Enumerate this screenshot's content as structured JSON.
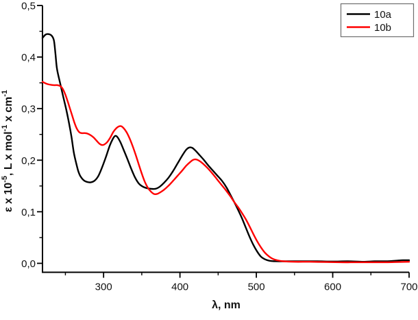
{
  "figure": {
    "background": "#ffffff"
  },
  "chart_data": {
    "type": "line",
    "title": "",
    "xlabel": "λ, nm",
    "ylabel_plain": "ε x 10-5, L x mol-1 x cm-1",
    "ylabel_parts": [
      {
        "text": "ε x 10"
      },
      {
        "sup": "-5"
      },
      {
        "text": ", L x mol"
      },
      {
        "sup": "-1"
      },
      {
        "text": " x cm"
      },
      {
        "sup": "-1"
      }
    ],
    "axes": {
      "xlim": [
        220,
        700
      ],
      "ylim": [
        0.0,
        0.5
      ],
      "grid": false,
      "x_major_ticks": [
        {
          "value": 300,
          "label": "300"
        },
        {
          "value": 400,
          "label": "400"
        },
        {
          "value": 500,
          "label": "500"
        },
        {
          "value": 600,
          "label": "600"
        },
        {
          "value": 700,
          "label": "700"
        }
      ],
      "x_minor_ticks": [
        250,
        350,
        450,
        550,
        650
      ],
      "y_major_ticks": [
        {
          "value": 0.0,
          "label": "0,0"
        },
        {
          "value": 0.1,
          "label": "0,1"
        },
        {
          "value": 0.2,
          "label": "0,2"
        },
        {
          "value": 0.3,
          "label": "0,3"
        },
        {
          "value": 0.4,
          "label": "0,4"
        },
        {
          "value": 0.5,
          "label": "0,5"
        }
      ],
      "y_minor_ticks": [
        0.05,
        0.15,
        0.25,
        0.35,
        0.45
      ]
    },
    "legend": {
      "position": "top-right",
      "entries": [
        {
          "label": "10a",
          "color": "#000000"
        },
        {
          "label": "10b",
          "color": "#ff0000"
        }
      ]
    },
    "series": [
      {
        "name": "10a",
        "color": "#000000",
        "points": [
          [
            220,
            0.437
          ],
          [
            224,
            0.4435
          ],
          [
            228,
            0.4445
          ],
          [
            232,
            0.4415
          ],
          [
            235,
            0.432
          ],
          [
            237,
            0.406
          ],
          [
            239,
            0.377
          ],
          [
            243,
            0.35
          ],
          [
            247,
            0.324
          ],
          [
            251,
            0.299
          ],
          [
            255,
            0.27
          ],
          [
            258,
            0.245
          ],
          [
            261,
            0.215
          ],
          [
            264,
            0.195
          ],
          [
            267,
            0.178
          ],
          [
            270,
            0.168
          ],
          [
            274,
            0.161
          ],
          [
            278,
            0.158
          ],
          [
            283,
            0.157
          ],
          [
            288,
            0.16
          ],
          [
            293,
            0.169
          ],
          [
            298,
            0.186
          ],
          [
            303,
            0.206
          ],
          [
            308,
            0.228
          ],
          [
            312,
            0.241
          ],
          [
            315,
            0.247
          ],
          [
            318,
            0.245
          ],
          [
            322,
            0.235
          ],
          [
            326,
            0.221
          ],
          [
            331,
            0.203
          ],
          [
            336,
            0.184
          ],
          [
            341,
            0.167
          ],
          [
            346,
            0.155
          ],
          [
            351,
            0.149
          ],
          [
            356,
            0.146
          ],
          [
            362,
            0.1445
          ],
          [
            368,
            0.1445
          ],
          [
            373,
            0.148
          ],
          [
            379,
            0.156
          ],
          [
            385,
            0.166
          ],
          [
            391,
            0.179
          ],
          [
            397,
            0.194
          ],
          [
            403,
            0.209
          ],
          [
            408,
            0.22
          ],
          [
            412,
            0.2245
          ],
          [
            416,
            0.224
          ],
          [
            420,
            0.219
          ],
          [
            425,
            0.211
          ],
          [
            431,
            0.201
          ],
          [
            437,
            0.19
          ],
          [
            443,
            0.18
          ],
          [
            449,
            0.17
          ],
          [
            455,
            0.16
          ],
          [
            461,
            0.147
          ],
          [
            466,
            0.133
          ],
          [
            471,
            0.119
          ],
          [
            476,
            0.104
          ],
          [
            481,
            0.088
          ],
          [
            486,
            0.07
          ],
          [
            491,
            0.052
          ],
          [
            496,
            0.036
          ],
          [
            501,
            0.023
          ],
          [
            506,
            0.013
          ],
          [
            511,
            0.008
          ],
          [
            517,
            0.005
          ],
          [
            525,
            0.004
          ],
          [
            540,
            0.004
          ],
          [
            560,
            0.004
          ],
          [
            580,
            0.004
          ],
          [
            600,
            0.0035
          ],
          [
            620,
            0.004
          ],
          [
            640,
            0.003
          ],
          [
            655,
            0.004
          ],
          [
            670,
            0.004
          ],
          [
            682,
            0.005
          ],
          [
            692,
            0.006
          ],
          [
            700,
            0.006
          ]
        ]
      },
      {
        "name": "10b",
        "color": "#ff0000",
        "points": [
          [
            220,
            0.352
          ],
          [
            224,
            0.349
          ],
          [
            228,
            0.347
          ],
          [
            232,
            0.346
          ],
          [
            236,
            0.3455
          ],
          [
            240,
            0.3455
          ],
          [
            244,
            0.343
          ],
          [
            247,
            0.337
          ],
          [
            250,
            0.327
          ],
          [
            253,
            0.314
          ],
          [
            256,
            0.3
          ],
          [
            259,
            0.286
          ],
          [
            262,
            0.272
          ],
          [
            265,
            0.261
          ],
          [
            268,
            0.2545
          ],
          [
            271,
            0.2525
          ],
          [
            275,
            0.2525
          ],
          [
            279,
            0.2515
          ],
          [
            283,
            0.2485
          ],
          [
            287,
            0.244
          ],
          [
            291,
            0.2375
          ],
          [
            295,
            0.2315
          ],
          [
            298,
            0.2295
          ],
          [
            301,
            0.2305
          ],
          [
            305,
            0.2355
          ],
          [
            309,
            0.2445
          ],
          [
            313,
            0.2555
          ],
          [
            317,
            0.2625
          ],
          [
            320,
            0.2655
          ],
          [
            323,
            0.266
          ],
          [
            326,
            0.2625
          ],
          [
            330,
            0.2545
          ],
          [
            334,
            0.2425
          ],
          [
            338,
            0.2275
          ],
          [
            342,
            0.2105
          ],
          [
            346,
            0.192
          ],
          [
            350,
            0.174
          ],
          [
            354,
            0.158
          ],
          [
            358,
            0.1465
          ],
          [
            362,
            0.139
          ],
          [
            366,
            0.1345
          ],
          [
            370,
            0.1345
          ],
          [
            374,
            0.1375
          ],
          [
            379,
            0.1425
          ],
          [
            385,
            0.1505
          ],
          [
            391,
            0.16
          ],
          [
            397,
            0.17
          ],
          [
            403,
            0.18
          ],
          [
            408,
            0.189
          ],
          [
            413,
            0.196
          ],
          [
            417,
            0.2005
          ],
          [
            421,
            0.2015
          ],
          [
            425,
            0.199
          ],
          [
            430,
            0.1935
          ],
          [
            436,
            0.185
          ],
          [
            442,
            0.175
          ],
          [
            448,
            0.164
          ],
          [
            454,
            0.153
          ],
          [
            460,
            0.142
          ],
          [
            466,
            0.13
          ],
          [
            471,
            0.119
          ],
          [
            476,
            0.109
          ],
          [
            481,
            0.098
          ],
          [
            486,
            0.086
          ],
          [
            491,
            0.072
          ],
          [
            496,
            0.057
          ],
          [
            501,
            0.043
          ],
          [
            506,
            0.031
          ],
          [
            511,
            0.021
          ],
          [
            516,
            0.014
          ],
          [
            521,
            0.009
          ],
          [
            527,
            0.006
          ],
          [
            535,
            0.004
          ],
          [
            550,
            0.003
          ],
          [
            570,
            0.003
          ],
          [
            590,
            0.0025
          ],
          [
            610,
            0.002
          ],
          [
            630,
            0.002
          ],
          [
            650,
            0.002
          ],
          [
            670,
            0.002
          ],
          [
            685,
            0.0025
          ],
          [
            700,
            0.003
          ]
        ]
      }
    ]
  }
}
